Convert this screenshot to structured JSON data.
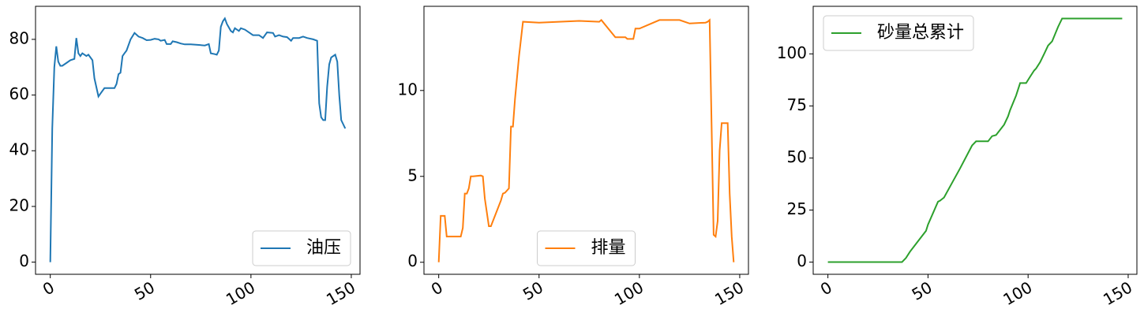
{
  "chart_data": [
    {
      "type": "line",
      "legend": "lower right",
      "xlim": [
        -7.35,
        154.35
      ],
      "ylim": [
        -4.37,
        91.87
      ],
      "xticks": [
        0,
        50,
        100,
        150
      ],
      "yticks": [
        0,
        20,
        40,
        60,
        80
      ],
      "series": [
        {
          "name": "油压",
          "color": "#1f77b4",
          "x": [
            0,
            1,
            2,
            3,
            4,
            5,
            6,
            8,
            10,
            12,
            13,
            14,
            15,
            16,
            18,
            19,
            21,
            22,
            24,
            25,
            27,
            30,
            32,
            33,
            34,
            35,
            36,
            37,
            38,
            40,
            42,
            44,
            46,
            48,
            50,
            52,
            54,
            55,
            57,
            58,
            60,
            61,
            63,
            65,
            67,
            70,
            74,
            77,
            79,
            80,
            82,
            83,
            84,
            85,
            86,
            87,
            88,
            90,
            91,
            92,
            94,
            95,
            97,
            99,
            101,
            104,
            106,
            108,
            111,
            112,
            114,
            116,
            118,
            120,
            121,
            124,
            126,
            128,
            131,
            133,
            134,
            135,
            136,
            137,
            138,
            139,
            140,
            142,
            143,
            144,
            145,
            147
          ],
          "values": [
            0,
            48,
            70,
            77.5,
            72,
            70.5,
            70.5,
            71.5,
            72.5,
            73,
            80.5,
            75,
            74,
            75,
            74,
            74.5,
            72.5,
            66,
            59.5,
            60.5,
            62.5,
            62.5,
            62.5,
            64,
            67.5,
            68,
            74,
            75,
            76,
            80,
            82.3,
            81,
            80.5,
            79.7,
            79.8,
            80.2,
            80,
            79.5,
            79.8,
            78.3,
            78.3,
            79.3,
            79,
            78.5,
            78.2,
            78.2,
            78,
            77.8,
            78.3,
            75,
            74.7,
            74.5,
            76,
            84.5,
            86.5,
            87.5,
            85.5,
            83,
            82.5,
            84,
            83,
            84,
            83.5,
            82.5,
            81.5,
            81.5,
            80.5,
            82.5,
            82.3,
            81,
            81.5,
            81,
            80.8,
            79.5,
            80.5,
            80.5,
            81,
            80.5,
            80,
            79.5,
            57,
            52,
            51,
            51,
            63,
            71,
            73.5,
            74.5,
            72,
            60,
            51,
            48
          ]
        }
      ]
    },
    {
      "type": "line",
      "legend": "lower center",
      "xlim": [
        -7.35,
        154.35
      ],
      "ylim": [
        -0.7,
        14.9
      ],
      "xticks": [
        0,
        50,
        100,
        150
      ],
      "yticks": [
        0,
        5,
        10
      ],
      "series": [
        {
          "name": "排量",
          "color": "#ff7f0e",
          "x": [
            0,
            1,
            3,
            4,
            11,
            12,
            13,
            14,
            15,
            16,
            17,
            21,
            22,
            23,
            25,
            26,
            31,
            32,
            33,
            35,
            36,
            37,
            38,
            40,
            42,
            50,
            60,
            70,
            80,
            81,
            88,
            93,
            94,
            97,
            98,
            100,
            110,
            120,
            125,
            133,
            134,
            135,
            137,
            138,
            139,
            140,
            141,
            144,
            145,
            146,
            147
          ],
          "values": [
            0,
            2.7,
            2.7,
            1.5,
            1.5,
            2,
            4,
            4,
            4.3,
            5,
            5,
            5.05,
            5,
            3.7,
            2.1,
            2.1,
            3.6,
            4,
            4.05,
            4.3,
            7.9,
            7.9,
            9.5,
            12,
            14,
            13.95,
            14,
            14.05,
            14,
            14.1,
            13.1,
            13.1,
            13,
            13,
            13.6,
            13.6,
            14.1,
            14.1,
            13.9,
            13.95,
            14,
            14.1,
            1.6,
            1.5,
            2.4,
            6.5,
            8.1,
            8.1,
            4,
            1.5,
            0
          ]
        }
      ]
    },
    {
      "type": "line",
      "legend": "upper left",
      "xlim": [
        -7.35,
        154.35
      ],
      "ylim": [
        -5.85,
        122.85
      ],
      "xticks": [
        0,
        50,
        100,
        150
      ],
      "yticks": [
        0,
        25,
        50,
        75,
        100
      ],
      "series": [
        {
          "name": "砂量总累计",
          "color": "#2ca02c",
          "x": [
            0,
            37,
            39,
            41,
            45,
            49,
            50,
            55,
            56,
            58,
            62,
            66,
            72,
            74,
            80,
            82,
            84,
            88,
            90,
            91,
            94,
            96,
            99,
            101,
            103,
            104,
            106,
            108,
            110,
            112,
            115,
            117,
            147
          ],
          "values": [
            0,
            0,
            2,
            5,
            10,
            15,
            18,
            29,
            29.5,
            31,
            38,
            45,
            56,
            58,
            58,
            60.5,
            61,
            66,
            70,
            73,
            80,
            86,
            86,
            89,
            92,
            93,
            96,
            100,
            104,
            106,
            113,
            117,
            117
          ]
        }
      ]
    }
  ]
}
